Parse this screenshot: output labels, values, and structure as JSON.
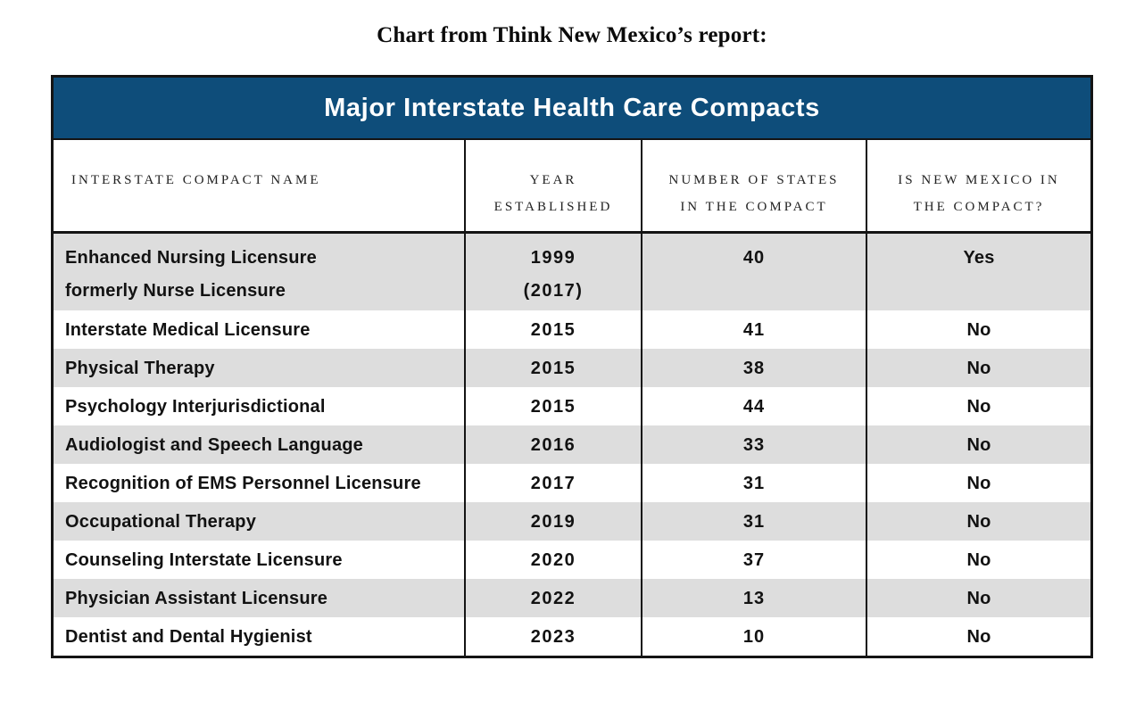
{
  "page": {
    "title": "Chart from Think New Mexico’s report:"
  },
  "table": {
    "title": "Major Interstate Health Care Compacts",
    "headers": [
      "INTERSTATE COMPACT NAME",
      "YEAR\nESTABLISHED",
      "NUMBER OF STATES\nIN THE COMPACT",
      "IS NEW MEXICO IN\nTHE COMPACT?"
    ],
    "rows": [
      {
        "name": "Enhanced Nursing Licensure\nformerly Nurse Licensure",
        "year": "1999\n(2017)",
        "states": "40",
        "new_mexico": "Yes"
      },
      {
        "name": "Interstate Medical Licensure",
        "year": "2015",
        "states": "41",
        "new_mexico": "No"
      },
      {
        "name": "Physical Therapy",
        "year": "2015",
        "states": "38",
        "new_mexico": "No"
      },
      {
        "name": "Psychology Interjurisdictional",
        "year": "2015",
        "states": "44",
        "new_mexico": "No"
      },
      {
        "name": "Audiologist and Speech Language",
        "year": "2016",
        "states": "33",
        "new_mexico": "No"
      },
      {
        "name": "Recognition of EMS Personnel Licensure",
        "year": "2017",
        "states": "31",
        "new_mexico": "No"
      },
      {
        "name": "Occupational Therapy",
        "year": "2019",
        "states": "31",
        "new_mexico": "No"
      },
      {
        "name": "Counseling Interstate Licensure",
        "year": "2020",
        "states": "37",
        "new_mexico": "No"
      },
      {
        "name": "Physician Assistant Licensure",
        "year": "2022",
        "states": "13",
        "new_mexico": "No"
      },
      {
        "name": "Dentist and Dental Hygienist",
        "year": "2023",
        "states": "10",
        "new_mexico": "No"
      }
    ]
  },
  "colors": {
    "header_band_blue": "#0e4d7a",
    "row_shade_gray": "#dddddd",
    "border_black": "#141414",
    "band_title_text": "#ffffff"
  },
  "chart_data": {
    "type": "table",
    "title": "Major Interstate Health Care Compacts",
    "columns": [
      "Interstate Compact Name",
      "Year Established",
      "Number of States in the Compact",
      "Is New Mexico in the Compact?"
    ],
    "rows": [
      [
        "Enhanced Nursing Licensure formerly Nurse Licensure",
        "1999 (2017)",
        40,
        "Yes"
      ],
      [
        "Interstate Medical Licensure",
        "2015",
        41,
        "No"
      ],
      [
        "Physical Therapy",
        "2015",
        38,
        "No"
      ],
      [
        "Psychology Interjurisdictional",
        "2015",
        44,
        "No"
      ],
      [
        "Audiologist and Speech Language",
        "2016",
        33,
        "No"
      ],
      [
        "Recognition of EMS Personnel Licensure",
        "2017",
        31,
        "No"
      ],
      [
        "Occupational Therapy",
        "2019",
        31,
        "No"
      ],
      [
        "Counseling Interstate Licensure",
        "2020",
        37,
        "No"
      ],
      [
        "Physician Assistant Licensure",
        "2022",
        13,
        "No"
      ],
      [
        "Dentist and Dental Hygienist",
        "2023",
        10,
        "No"
      ]
    ],
    "layout": {
      "zebra_striping": true,
      "first_row_shaded": true,
      "numeric_columns_centered": true
    }
  }
}
